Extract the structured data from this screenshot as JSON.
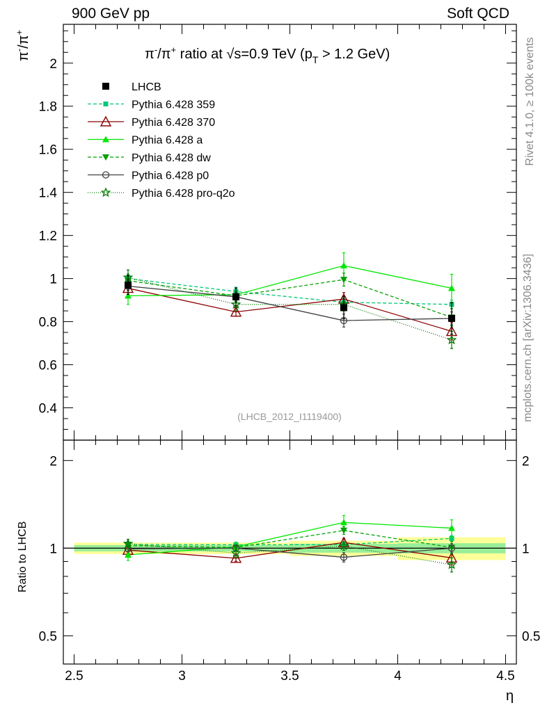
{
  "header": {
    "left": "900 GeV pp",
    "right": "Soft QCD"
  },
  "side_texts": {
    "rivet": "Rivet 4.1.0, ≥ 100k events",
    "mcplots": "mcplots.cern.ch [arXiv:1306.3436]"
  },
  "watermark": "(LHCB_2012_I1119400)",
  "chart_data": {
    "type": "line",
    "title": "π⁻/π⁺ ratio at √s=0.9 TeV (pT > 1.2 GeV)",
    "title_parts": {
      "a": "π",
      "b": "-",
      "c": "/π",
      "d": "+",
      "e": " ratio at √s=0.9 TeV (p",
      "f": "T",
      "g": " > 1.2 GeV)"
    },
    "ylabel_parts": {
      "a": "π",
      "b": "-",
      "c": "/π",
      "d": "+"
    },
    "xlabel": "η",
    "ratio_ylabel": "Ratio to LHCB",
    "xlim": [
      2.45,
      4.55
    ],
    "ylim": [
      0.25,
      2.18
    ],
    "ratio_ylim": [
      0.4,
      2.35
    ],
    "x_ticks": [
      2.5,
      3,
      3.5,
      4,
      4.5
    ],
    "x_tick_labels": [
      "2.5",
      "3",
      "3.5",
      "4",
      "4.5"
    ],
    "y_ticks": [
      0.4,
      0.6,
      0.8,
      1,
      1.2,
      1.4,
      1.6,
      1.8,
      2
    ],
    "y_tick_labels": [
      "0.4",
      "0.6",
      "0.8",
      "1",
      "1.2",
      "1.4",
      "1.6",
      "1.8",
      "2"
    ],
    "ratio_ticks": [
      0.5,
      1,
      2
    ],
    "ratio_tick_labels": [
      "0.5",
      "1",
      "2"
    ],
    "x": [
      2.75,
      3.25,
      3.75,
      4.25
    ],
    "bin_edges": [
      2.5,
      3.0,
      3.5,
      4.0,
      4.5
    ],
    "data": {
      "name": "LHCB",
      "values": [
        0.97,
        0.915,
        0.865,
        0.815
      ],
      "stat_rel": [
        0.025,
        0.025,
        0.035,
        0.04
      ],
      "tot_rel": [
        0.045,
        0.045,
        0.06,
        0.09
      ]
    },
    "series": [
      {
        "name": "Pythia 6.428 359",
        "color": "#00c878",
        "dash": "5,3",
        "marker": "square-small",
        "values": [
          1.0,
          0.94,
          0.89,
          0.88
        ],
        "err": [
          0.02,
          0.02,
          0.02,
          0.02
        ]
      },
      {
        "name": "Pythia 6.428 370",
        "color": "#8b0000",
        "dash": "",
        "marker": "triangle-open",
        "values": [
          0.955,
          0.845,
          0.905,
          0.755
        ],
        "err": [
          0.02,
          0.02,
          0.03,
          0.04
        ]
      },
      {
        "name": "Pythia 6.428 a",
        "color": "#00e600",
        "dash": "",
        "marker": "triangle-up",
        "values": [
          0.92,
          0.925,
          1.06,
          0.955
        ],
        "err": [
          0.04,
          0.03,
          0.06,
          0.065
        ]
      },
      {
        "name": "Pythia 6.428 dw",
        "color": "#00a000",
        "dash": "5,3",
        "marker": "triangle-down",
        "values": [
          0.99,
          0.92,
          0.995,
          0.82
        ],
        "err": [
          0.02,
          0.02,
          0.03,
          0.04
        ]
      },
      {
        "name": "Pythia 6.428 p0",
        "color": "#404040",
        "dash": "",
        "marker": "circle-open",
        "values": [
          0.965,
          0.915,
          0.805,
          0.815
        ],
        "err": [
          0.02,
          0.02,
          0.03,
          0.03
        ]
      },
      {
        "name": "Pythia 6.428 pro-q2o",
        "color": "#007a00",
        "dash": "1,2",
        "marker": "star",
        "values": [
          1.005,
          0.88,
          0.88,
          0.715
        ],
        "err": [
          0.035,
          0.03,
          0.03,
          0.04
        ]
      }
    ]
  }
}
